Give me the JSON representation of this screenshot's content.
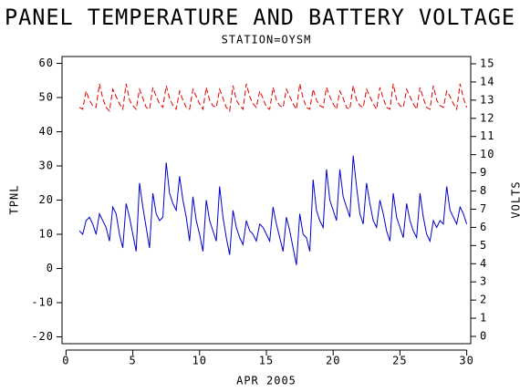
{
  "chart_data": {
    "type": "line",
    "title": "PANEL TEMPERATURE AND BATTERY VOLTAGE",
    "subtitle": "STATION=OYSM",
    "x_label": "APR 2005",
    "y_label": "TPNL",
    "y2_label": "VOLTS",
    "xlim": [
      -0.3,
      30.3
    ],
    "xticks": [
      0,
      5,
      10,
      15,
      20,
      25,
      30
    ],
    "ylim": [
      -22,
      62
    ],
    "yticks": [
      -20,
      -10,
      0,
      10,
      20,
      30,
      40,
      50,
      60
    ],
    "y2lim": [
      -0.4,
      15.4
    ],
    "y2ticks": [
      0,
      1,
      2,
      3,
      4,
      5,
      6,
      7,
      8,
      9,
      10,
      11,
      12,
      13,
      14,
      15
    ],
    "x": [
      1,
      1.25,
      1.5,
      1.75,
      2,
      2.25,
      2.5,
      2.75,
      3,
      3.25,
      3.5,
      3.75,
      4,
      4.25,
      4.5,
      4.75,
      5,
      5.25,
      5.5,
      5.75,
      6,
      6.25,
      6.5,
      6.75,
      7,
      7.25,
      7.5,
      7.75,
      8,
      8.25,
      8.5,
      8.75,
      9,
      9.25,
      9.5,
      9.75,
      10,
      10.25,
      10.5,
      10.75,
      11,
      11.25,
      11.5,
      11.75,
      12,
      12.25,
      12.5,
      12.75,
      13,
      13.25,
      13.5,
      13.75,
      14,
      14.25,
      14.5,
      14.75,
      15,
      15.25,
      15.5,
      15.75,
      16,
      16.25,
      16.5,
      16.75,
      17,
      17.25,
      17.5,
      17.75,
      18,
      18.25,
      18.5,
      18.75,
      19,
      19.25,
      19.5,
      19.75,
      20,
      20.25,
      20.5,
      20.75,
      21,
      21.25,
      21.5,
      21.75,
      22,
      22.25,
      22.5,
      22.75,
      23,
      23.25,
      23.5,
      23.75,
      24,
      24.25,
      24.5,
      24.75,
      25,
      25.25,
      25.5,
      25.75,
      26,
      26.25,
      26.5,
      26.75,
      27,
      27.25,
      27.5,
      27.75,
      28,
      28.25,
      28.5,
      28.75,
      29,
      29.25,
      29.5,
      29.75,
      30
    ],
    "series": [
      {
        "name": "TPNL",
        "color": "#0000cc",
        "dash": false,
        "axis": "y",
        "values": [
          11,
          10,
          14,
          15,
          13,
          10,
          16,
          14,
          12,
          8,
          18,
          16,
          10,
          6,
          19,
          15,
          10,
          5,
          25,
          18,
          12,
          6,
          22,
          16,
          14,
          15,
          31,
          22,
          19,
          17,
          27,
          20,
          15,
          8,
          21,
          14,
          10,
          5,
          20,
          14,
          11,
          8,
          24,
          15,
          9,
          4,
          17,
          12,
          9,
          7,
          14,
          11,
          10,
          8,
          13,
          12,
          10,
          8,
          18,
          13,
          9,
          5,
          15,
          11,
          6,
          1,
          16,
          10,
          9,
          5,
          26,
          17,
          14,
          12,
          29,
          20,
          17,
          14,
          29,
          21,
          18,
          15,
          33,
          24,
          16,
          13,
          25,
          19,
          14,
          12,
          20,
          16,
          11,
          8,
          22,
          15,
          12,
          9,
          19,
          14,
          11,
          9,
          22,
          15,
          10,
          8,
          14,
          12,
          14,
          13,
          24,
          17,
          15,
          13,
          18,
          16,
          13
        ]
      },
      {
        "name": "VOLTS",
        "color": "#dd0000",
        "dash": true,
        "axis": "y2",
        "values": [
          12.6,
          12.5,
          13.5,
          13.0,
          12.7,
          12.6,
          13.9,
          13.1,
          12.6,
          12.4,
          13.6,
          13.2,
          12.8,
          12.5,
          13.9,
          13.0,
          12.7,
          12.5,
          13.6,
          13.1,
          12.6,
          12.5,
          13.7,
          13.2,
          12.8,
          12.6,
          13.8,
          13.1,
          12.7,
          12.5,
          13.5,
          13.0,
          12.6,
          12.5,
          13.6,
          13.2,
          12.8,
          12.5,
          13.7,
          13.0,
          12.7,
          12.6,
          13.6,
          13.1,
          12.6,
          12.4,
          13.8,
          13.0,
          12.7,
          12.5,
          13.9,
          13.2,
          12.8,
          12.6,
          13.5,
          13.1,
          12.6,
          12.5,
          13.7,
          13.0,
          12.7,
          12.6,
          13.6,
          13.2,
          12.8,
          12.5,
          13.9,
          13.1,
          12.6,
          12.5,
          13.6,
          13.0,
          12.7,
          12.6,
          13.7,
          13.2,
          12.8,
          12.5,
          13.5,
          13.1,
          12.6,
          12.5,
          13.8,
          13.0,
          12.7,
          12.6,
          13.6,
          13.2,
          12.8,
          12.5,
          13.7,
          13.1,
          12.6,
          12.5,
          13.9,
          13.0,
          12.7,
          12.6,
          13.6,
          13.2,
          12.8,
          12.5,
          13.7,
          13.1,
          12.6,
          12.5,
          13.8,
          13.0,
          12.7,
          12.6,
          13.5,
          13.2,
          12.8,
          12.5,
          13.9,
          13.1,
          12.6
        ]
      }
    ]
  }
}
